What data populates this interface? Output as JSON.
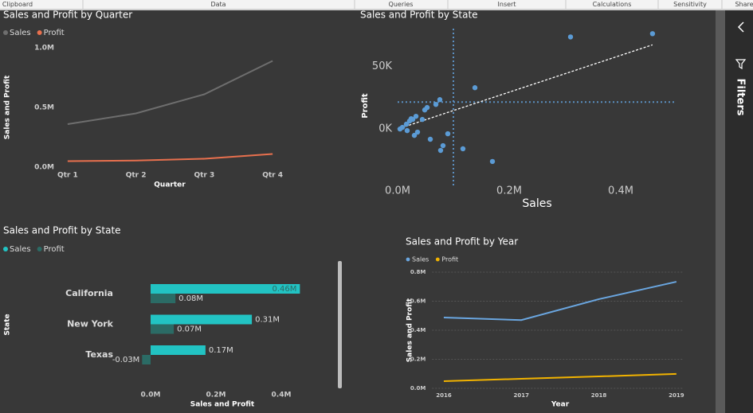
{
  "ribbon": {
    "groups": [
      "Clipboard",
      "Data",
      "Queries",
      "Insert",
      "Calculations",
      "Sensitivity",
      "Share"
    ]
  },
  "filters_pane": {
    "label": "Filters"
  },
  "chart_data": [
    {
      "type": "line",
      "title": "Sales and Profit by Quarter",
      "x_label": "Quarter",
      "y_label": "Sales and Profit",
      "categories": [
        "Qtr 1",
        "Qtr 2",
        "Qtr 3",
        "Qtr 4"
      ],
      "series": [
        {
          "name": "Sales",
          "color": "#6e6e6e",
          "values": [
            360000,
            450000,
            610000,
            890000
          ]
        },
        {
          "name": "Profit",
          "color": "#e8704e",
          "values": [
            50000,
            55000,
            70000,
            110000
          ]
        }
      ],
      "ylim": [
        0,
        1000000
      ],
      "yticks": [
        {
          "value": 0,
          "label": "0.0M"
        },
        {
          "value": 500000,
          "label": "0.5M"
        },
        {
          "value": 1000000,
          "label": "1.0M"
        }
      ],
      "grid": false
    },
    {
      "type": "scatter",
      "title": "Sales and Profit by State",
      "x_label": "Sales",
      "y_label": "Profit",
      "color": "#5b9bd5",
      "x": [
        310000,
        457000,
        138600,
        75700,
        68600,
        52900,
        48600,
        32900,
        27100,
        21400,
        15700,
        8600,
        4300,
        17100,
        30000,
        35700,
        58600,
        90000,
        81400,
        77100,
        117100,
        170000,
        24300,
        44300
      ],
      "y": [
        73400,
        76000,
        32900,
        23400,
        19600,
        17100,
        15200,
        10100,
        7600,
        6300,
        3800,
        1300,
        0,
        -1300,
        -5100,
        -2500,
        -8200,
        -3800,
        -13300,
        -17100,
        -15800,
        -25900,
        8200,
        7600
      ],
      "reference_lines": {
        "x": 100000,
        "y": 21500
      },
      "trend": {
        "x": [
          0,
          457000
        ],
        "y": [
          0,
          67100
        ]
      },
      "xlim": [
        0,
        500000
      ],
      "ylim": [
        -45000,
        80000
      ],
      "xticks": [
        {
          "value": 0,
          "label": "0.0M"
        },
        {
          "value": 200000,
          "label": "0.2M"
        },
        {
          "value": 400000,
          "label": "0.4M"
        }
      ],
      "yticks": [
        {
          "value": 0,
          "label": "0K"
        },
        {
          "value": 50000,
          "label": "50K"
        }
      ]
    },
    {
      "type": "bar",
      "orientation": "horizontal",
      "title": "Sales and Profit by State",
      "x_label": "Sales and Profit",
      "y_label": "State",
      "categories": [
        "California",
        "New York",
        "Texas"
      ],
      "series": [
        {
          "name": "Sales",
          "color": "#22c3c3",
          "values": [
            457000,
            310000,
            168000
          ],
          "value_labels": [
            "0.46M",
            "0.31M",
            "0.17M"
          ]
        },
        {
          "name": "Profit",
          "color": "#2b6b65",
          "values": [
            76000,
            71000,
            -26000
          ],
          "value_labels": [
            "0.08M",
            "0.07M",
            "-0.03M"
          ]
        }
      ],
      "xlim": [
        -100000,
        500000
      ],
      "xticks": [
        {
          "value": 0,
          "label": "0.0M"
        },
        {
          "value": 200000,
          "label": "0.2M"
        },
        {
          "value": 400000,
          "label": "0.4M"
        }
      ]
    },
    {
      "type": "line",
      "title": "Sales and Profit by Year",
      "x_label": "Year",
      "y_label": "Sales and Profit",
      "categories": [
        "2016",
        "2017",
        "2018",
        "2019"
      ],
      "series": [
        {
          "name": "Sales",
          "color": "#6aa6e0",
          "values": [
            488000,
            470000,
            614000,
            734000
          ]
        },
        {
          "name": "Profit",
          "color": "#f2b300",
          "values": [
            49000,
            66000,
            82000,
            99000
          ]
        }
      ],
      "ylim": [
        0,
        800000
      ],
      "yticks": [
        {
          "value": 0,
          "label": "0.0M"
        },
        {
          "value": 200000,
          "label": "0.2M"
        },
        {
          "value": 400000,
          "label": "0.4M"
        },
        {
          "value": 600000,
          "label": "0.6M"
        },
        {
          "value": 800000,
          "label": "0.8M"
        }
      ],
      "grid": true
    }
  ]
}
